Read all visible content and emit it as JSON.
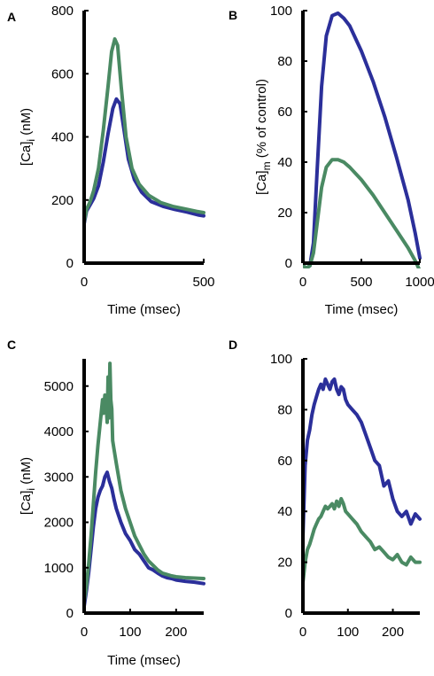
{
  "colors": {
    "blue": "#2b2f9a",
    "green": "#4a8a63",
    "axis": "#000000"
  },
  "chart_data": [
    {
      "panel": "A",
      "type": "line",
      "xlabel": "Time (msec)",
      "ylabel_base": "[Ca]",
      "ylabel_sub": "i",
      "ylabel_rest": " (nM)",
      "xlim": [
        0,
        500
      ],
      "ylim": [
        0,
        800
      ],
      "xticks": [
        0,
        500
      ],
      "yticks": [
        0,
        200,
        400,
        600,
        800
      ],
      "series": [
        {
          "color": "blue",
          "x": [
            0,
            10,
            25,
            40,
            60,
            80,
            100,
            120,
            135,
            150,
            165,
            185,
            210,
            240,
            280,
            330,
            380,
            430,
            480,
            500
          ],
          "y": [
            125,
            165,
            185,
            205,
            245,
            320,
            410,
            490,
            520,
            505,
            430,
            330,
            265,
            225,
            195,
            180,
            170,
            162,
            152,
            150
          ]
        },
        {
          "color": "green",
          "x": [
            0,
            10,
            25,
            40,
            60,
            80,
            100,
            115,
            128,
            140,
            155,
            175,
            200,
            230,
            270,
            320,
            370,
            420,
            470,
            500
          ],
          "y": [
            130,
            170,
            195,
            230,
            300,
            420,
            560,
            670,
            710,
            690,
            560,
            400,
            300,
            250,
            215,
            192,
            180,
            172,
            164,
            160
          ]
        }
      ]
    },
    {
      "panel": "B",
      "type": "line",
      "xlabel": "Time (msec)",
      "ylabel_base": "[Ca]",
      "ylabel_sub": "m",
      "ylabel_rest": " (% of control)",
      "xlim": [
        0,
        1000
      ],
      "ylim": [
        0,
        100
      ],
      "xticks": [
        0,
        500,
        1000
      ],
      "yticks": [
        0,
        20,
        40,
        60,
        80,
        100
      ],
      "series": [
        {
          "color": "blue",
          "x": [
            0,
            30,
            60,
            90,
            120,
            160,
            200,
            250,
            300,
            350,
            400,
            500,
            600,
            700,
            800,
            900,
            960,
            1000
          ],
          "y": [
            -1,
            -2,
            -1,
            8,
            35,
            70,
            90,
            98,
            99,
            97,
            94,
            84,
            72,
            58,
            42,
            25,
            12,
            2
          ]
        },
        {
          "color": "green",
          "x": [
            0,
            30,
            60,
            90,
            120,
            160,
            200,
            250,
            300,
            350,
            400,
            500,
            600,
            700,
            800,
            900,
            960,
            1000
          ],
          "y": [
            -1,
            -2,
            -1,
            4,
            15,
            30,
            38,
            41,
            41,
            40,
            38,
            33,
            27,
            20,
            13,
            6,
            1,
            -3
          ]
        }
      ]
    },
    {
      "panel": "C",
      "type": "line",
      "xlabel": "Time (msec)",
      "ylabel_base": "[Ca]",
      "ylabel_sub": "i",
      "ylabel_rest": " (nM)",
      "xlim": [
        0,
        260
      ],
      "ylim": [
        0,
        5600
      ],
      "xticks": [
        0,
        100,
        200
      ],
      "yticks": [
        0,
        1000,
        2000,
        3000,
        4000,
        5000
      ],
      "series": [
        {
          "color": "blue",
          "x": [
            0,
            5,
            10,
            15,
            20,
            25,
            30,
            35,
            40,
            45,
            50,
            55,
            60,
            65,
            70,
            75,
            80,
            90,
            100,
            110,
            120,
            130,
            140,
            150,
            160,
            170,
            180,
            190,
            200,
            220,
            240,
            260
          ],
          "y": [
            150,
            500,
            900,
            1400,
            1900,
            2300,
            2550,
            2700,
            2800,
            3000,
            3100,
            2900,
            2750,
            2500,
            2300,
            2150,
            2000,
            1750,
            1600,
            1400,
            1300,
            1150,
            1000,
            950,
            880,
            820,
            780,
            760,
            730,
            700,
            680,
            650
          ]
        },
        {
          "color": "green",
          "x": [
            0,
            5,
            10,
            15,
            20,
            25,
            30,
            35,
            40,
            42,
            45,
            48,
            50,
            52,
            54,
            56,
            58,
            60,
            62,
            65,
            70,
            75,
            80,
            90,
            100,
            110,
            120,
            130,
            140,
            150,
            160,
            170,
            180,
            190,
            200,
            220,
            240,
            260
          ],
          "y": [
            250,
            600,
            1100,
            1700,
            2400,
            3100,
            3700,
            4200,
            4700,
            4400,
            4800,
            4600,
            4200,
            5200,
            4300,
            5500,
            4700,
            4500,
            3800,
            3600,
            3300,
            3000,
            2700,
            2300,
            2000,
            1700,
            1500,
            1300,
            1150,
            1050,
            950,
            880,
            850,
            820,
            800,
            780,
            770,
            760
          ]
        }
      ]
    },
    {
      "panel": "D",
      "type": "line",
      "xlabel": "",
      "ylabel_base": "",
      "ylabel_sub": "",
      "ylabel_rest": "",
      "xlim": [
        0,
        260
      ],
      "ylim": [
        0,
        100
      ],
      "xticks": [
        0,
        100,
        200
      ],
      "yticks": [
        0,
        20,
        40,
        60,
        80,
        100
      ],
      "series": [
        {
          "color": "blue",
          "x": [
            0,
            5,
            10,
            15,
            20,
            25,
            30,
            35,
            40,
            45,
            50,
            55,
            60,
            65,
            70,
            75,
            80,
            85,
            90,
            95,
            100,
            110,
            120,
            130,
            140,
            150,
            160,
            170,
            180,
            190,
            200,
            210,
            220,
            230,
            240,
            250,
            260
          ],
          "y": [
            30,
            58,
            68,
            72,
            78,
            82,
            85,
            88,
            90,
            88,
            92,
            90,
            88,
            91,
            92,
            88,
            86,
            89,
            88,
            84,
            82,
            80,
            78,
            75,
            70,
            65,
            60,
            58,
            50,
            52,
            45,
            40,
            38,
            40,
            35,
            39,
            37
          ]
        },
        {
          "color": "green",
          "x": [
            0,
            5,
            10,
            15,
            20,
            25,
            30,
            35,
            40,
            45,
            50,
            55,
            60,
            65,
            70,
            75,
            80,
            85,
            90,
            95,
            100,
            110,
            120,
            130,
            140,
            150,
            160,
            170,
            180,
            190,
            200,
            210,
            220,
            230,
            240,
            250,
            260
          ],
          "y": [
            12,
            20,
            25,
            27,
            30,
            33,
            35,
            37,
            38,
            40,
            42,
            41,
            42,
            43,
            41,
            44,
            42,
            45,
            43,
            40,
            39,
            37,
            35,
            32,
            30,
            28,
            25,
            26,
            24,
            22,
            21,
            23,
            20,
            19,
            22,
            20,
            20
          ]
        }
      ]
    }
  ]
}
